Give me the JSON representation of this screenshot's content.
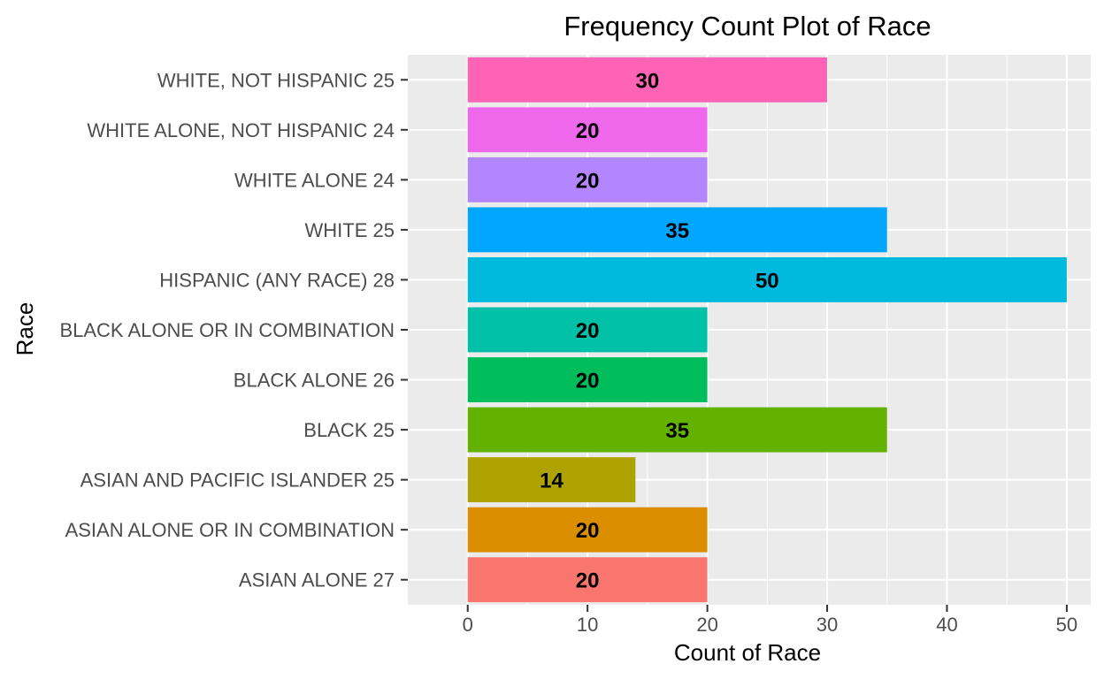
{
  "chart_data": {
    "type": "bar",
    "orientation": "horizontal",
    "title": "Frequency Count Plot of Race",
    "xlabel": "Count of Race",
    "ylabel": "Race",
    "xlim": [
      -5,
      52
    ],
    "xticks": [
      0,
      10,
      20,
      30,
      40,
      50
    ],
    "grid": true,
    "legend": "none",
    "categories": [
      "ASIAN ALONE 27",
      "ASIAN ALONE OR IN COMBINATION",
      "ASIAN AND PACIFIC ISLANDER 25",
      "BLACK 25",
      "BLACK ALONE 26",
      "BLACK ALONE OR IN COMBINATION",
      "HISPANIC (ANY RACE) 28",
      "WHITE 25",
      "WHITE ALONE 24",
      "WHITE ALONE, NOT HISPANIC 24",
      "WHITE, NOT HISPANIC 25"
    ],
    "values": [
      20,
      20,
      14,
      35,
      20,
      20,
      50,
      35,
      20,
      20,
      30
    ],
    "data_labels": [
      "20",
      "20",
      "14",
      "35",
      "20",
      "20",
      "50",
      "35",
      "20",
      "20",
      "30"
    ],
    "colors": [
      "#F8766D",
      "#DB8E00",
      "#AEA200",
      "#64B200",
      "#00BD5C",
      "#00C1A7",
      "#00BADE",
      "#00A6FF",
      "#B385FF",
      "#EF67EB",
      "#FF63B6"
    ]
  }
}
